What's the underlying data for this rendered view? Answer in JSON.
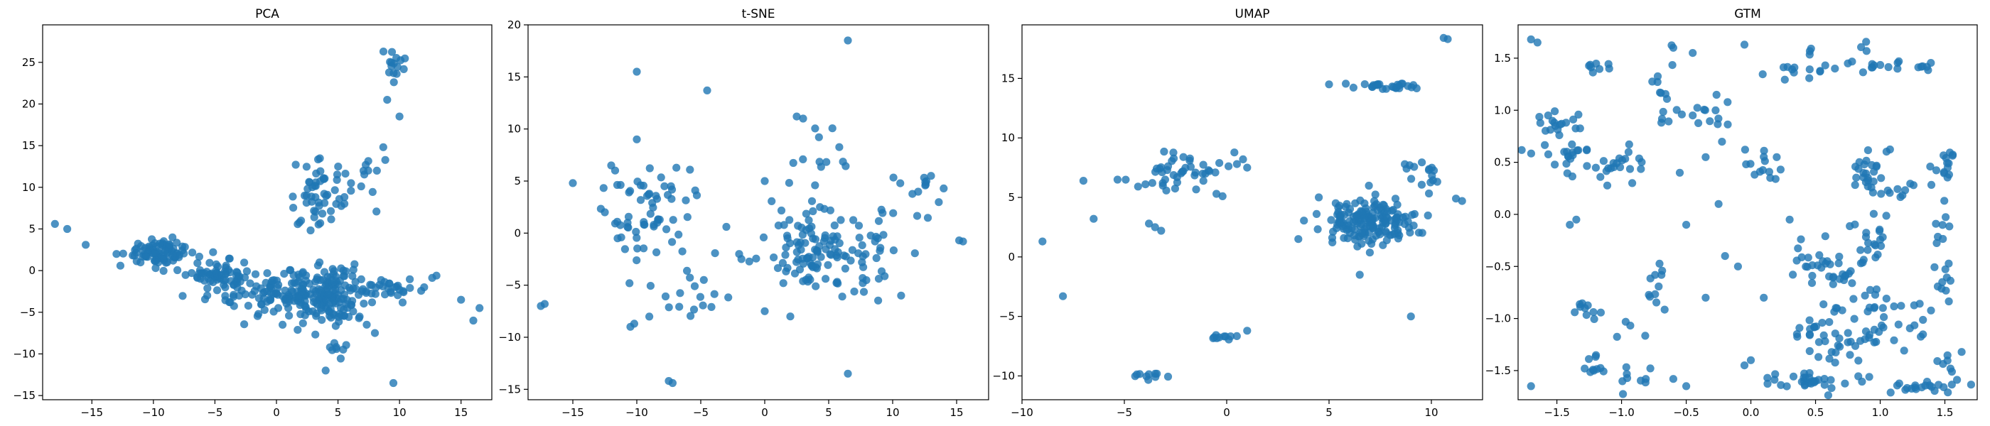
{
  "chart_data": [
    {
      "type": "scatter",
      "title": "PCA",
      "color": "#1f77b4",
      "xlim": [
        -19,
        17.5
      ],
      "ylim": [
        -15.5,
        29.5
      ],
      "xticks": [
        -15,
        -10,
        -5,
        0,
        5,
        10,
        15
      ],
      "yticks": [
        -15,
        -10,
        -5,
        0,
        5,
        10,
        15,
        20,
        25
      ],
      "clusters": [
        {
          "cx": -9.5,
          "cy": 2.2,
          "sx": 1.4,
          "sy": 0.8,
          "n": 90,
          "rot": -0.2
        },
        {
          "cx": -4.5,
          "cy": -0.8,
          "sx": 1.2,
          "sy": 1.1,
          "n": 80,
          "rot": 0
        },
        {
          "cx": 0.5,
          "cy": -3.0,
          "sx": 1.6,
          "sy": 1.2,
          "n": 90,
          "rot": 0
        },
        {
          "cx": 4.5,
          "cy": -3.0,
          "sx": 1.5,
          "sy": 1.8,
          "n": 140,
          "rot": 0
        },
        {
          "cx": 9.5,
          "cy": -2.0,
          "sx": 1.6,
          "sy": 0.7,
          "n": 30,
          "rot": 0
        },
        {
          "cx": 3.5,
          "cy": 9.0,
          "sx": 1.0,
          "sy": 2.0,
          "n": 50,
          "rot": 0
        },
        {
          "cx": 6.5,
          "cy": 11.5,
          "sx": 1.0,
          "sy": 2.0,
          "n": 15,
          "rot": 0
        },
        {
          "cx": 9.5,
          "cy": 25.0,
          "sx": 0.6,
          "sy": 1.1,
          "n": 15,
          "rot": 0
        },
        {
          "cx": 5.0,
          "cy": -10.0,
          "sx": 0.6,
          "sy": 1.0,
          "n": 8,
          "rot": 0
        }
      ],
      "points": [
        [
          -18,
          5.6
        ],
        [
          -17,
          5.0
        ],
        [
          -15.5,
          3.1
        ],
        [
          -13,
          2.0
        ],
        [
          10,
          18.5
        ],
        [
          9,
          20.5
        ],
        [
          9.5,
          -13.5
        ],
        [
          15,
          -3.5
        ],
        [
          16,
          -6
        ],
        [
          16.5,
          -4.5
        ],
        [
          8,
          -7.5
        ],
        [
          4,
          -12
        ],
        [
          13,
          -0.6
        ],
        [
          0.5,
          -6.5
        ],
        [
          2,
          6
        ],
        [
          12,
          -2
        ]
      ]
    },
    {
      "type": "scatter",
      "title": "t-SNE",
      "color": "#1f77b4",
      "xlim": [
        -18.5,
        17.5
      ],
      "ylim": [
        -16,
        20
      ],
      "xticks": [
        -15,
        -10,
        -5,
        0,
        5,
        10,
        15
      ],
      "yticks": [
        -15,
        -10,
        -5,
        0,
        5,
        10,
        15,
        20
      ],
      "clusters": [
        {
          "cx": -9.0,
          "cy": 2.5,
          "sx": 1.6,
          "sy": 2.2,
          "n": 60,
          "rot": 0
        },
        {
          "cx": 4.0,
          "cy": -1.5,
          "sx": 2.0,
          "sy": 2.0,
          "n": 110,
          "rot": 0
        },
        {
          "cx": 9.0,
          "cy": -2.0,
          "sx": 1.5,
          "sy": 2.5,
          "n": 25,
          "rot": 0
        },
        {
          "cx": -6.0,
          "cy": -5.5,
          "sx": 1.8,
          "sy": 1.8,
          "n": 20,
          "rot": 0
        },
        {
          "cx": 11.5,
          "cy": 4.5,
          "sx": 1.5,
          "sy": 1.0,
          "n": 12,
          "rot": 0
        },
        {
          "cx": 4.5,
          "cy": 7.5,
          "sx": 1.5,
          "sy": 1.5,
          "n": 12,
          "rot": 0
        }
      ],
      "points": [
        [
          6.5,
          18.5
        ],
        [
          -10,
          15.5
        ],
        [
          -4.5,
          13.7
        ],
        [
          -15,
          4.8
        ],
        [
          -17.5,
          -7
        ],
        [
          -17.2,
          -6.8
        ],
        [
          -7.5,
          -14.2
        ],
        [
          -7.2,
          -14.4
        ],
        [
          6.5,
          -13.5
        ],
        [
          15.5,
          -0.8
        ],
        [
          15.2,
          -0.7
        ],
        [
          -10.5,
          -9
        ],
        [
          -10.2,
          -8.7
        ],
        [
          3,
          11
        ],
        [
          2.5,
          11.2
        ],
        [
          -10,
          9
        ],
        [
          2,
          -8
        ],
        [
          0,
          -7.5
        ],
        [
          -2,
          -2
        ],
        [
          -3,
          0.6
        ],
        [
          -12,
          6.5
        ],
        [
          -12.5,
          2
        ],
        [
          -11.5,
          -0.5
        ],
        [
          0,
          5
        ],
        [
          13,
          5.5
        ]
      ]
    },
    {
      "type": "scatter",
      "title": "UMAP",
      "color": "#1f77b4",
      "xlim": [
        -10,
        12.5
      ],
      "ylim": [
        -12,
        19.5
      ],
      "xticks": [
        -10,
        -5,
        0,
        5,
        10
      ],
      "yticks": [
        -10,
        -5,
        0,
        5,
        10,
        15
      ],
      "clusters": [
        {
          "cx": 7.0,
          "cy": 3.0,
          "sx": 1.2,
          "sy": 1.0,
          "n": 170,
          "rot": 0
        },
        {
          "cx": -2.5,
          "cy": 7.0,
          "sx": 1.2,
          "sy": 0.7,
          "n": 45,
          "rot": 0.55
        },
        {
          "cx": 9.8,
          "cy": 7.5,
          "sx": 0.6,
          "sy": 0.8,
          "n": 15,
          "rot": 0.6
        },
        {
          "cx": 8.0,
          "cy": 14.3,
          "sx": 1.2,
          "sy": 0.15,
          "n": 25,
          "rot": 0
        },
        {
          "cx": -4.0,
          "cy": -10.0,
          "sx": 0.3,
          "sy": 0.25,
          "n": 10,
          "rot": 0.5
        },
        {
          "cx": 0.0,
          "cy": -6.7,
          "sx": 0.35,
          "sy": 0.25,
          "n": 10,
          "rot": 0.3
        }
      ],
      "points": [
        [
          10.8,
          18.3
        ],
        [
          10.6,
          18.4
        ],
        [
          -7,
          6.4
        ],
        [
          -6.5,
          3.2
        ],
        [
          -9,
          1.3
        ],
        [
          -8,
          -3.3
        ],
        [
          -3.5,
          2.5
        ],
        [
          -3.2,
          2.2
        ],
        [
          -3.8,
          2.8
        ],
        [
          3.5,
          1.5
        ],
        [
          5,
          14.5
        ],
        [
          9,
          -5
        ],
        [
          0.8,
          8.2
        ],
        [
          1,
          7.5
        ],
        [
          0.5,
          7.8
        ],
        [
          -0.5,
          5.3
        ],
        [
          -0.2,
          5.1
        ],
        [
          11.5,
          4.7
        ],
        [
          11.2,
          4.9
        ],
        [
          6.5,
          -1.5
        ],
        [
          1,
          -6.2
        ],
        [
          4.5,
          5
        ]
      ]
    },
    {
      "type": "scatter",
      "title": "GTM",
      "color": "#1f77b4",
      "xlim": [
        -1.8,
        1.75
      ],
      "ylim": [
        -1.78,
        1.82
      ],
      "xticks": [
        -1.5,
        -1.0,
        -0.5,
        0.0,
        0.5,
        1.0,
        1.5
      ],
      "tick_labels": {
        "x": [
          "−1.5",
          "−1.0",
          "−0.5",
          "0.0",
          "0.5",
          "1.0",
          "1.5"
        ],
        "y": [
          "−1.5",
          "−1.0",
          "−0.5",
          "0.0",
          "0.5",
          "1.0",
          "1.5"
        ]
      },
      "yticks": [
        -1.5,
        -1.0,
        -0.5,
        0.0,
        0.5,
        1.0,
        1.5
      ],
      "clusters": [
        {
          "cx": -1.45,
          "cy": 0.7,
          "sx": 0.12,
          "sy": 0.18,
          "n": 40,
          "rot": 0
        },
        {
          "cx": 0.6,
          "cy": -0.5,
          "sx": 0.15,
          "sy": 0.15,
          "n": 40,
          "rot": 0
        },
        {
          "cx": 0.7,
          "cy": -1.2,
          "sx": 0.18,
          "sy": 0.2,
          "n": 50,
          "rot": 0
        },
        {
          "cx": 0.9,
          "cy": 0.4,
          "sx": 0.06,
          "sy": 0.12,
          "n": 25,
          "rot": 0
        },
        {
          "cx": -1.0,
          "cy": 0.45,
          "sx": 0.08,
          "sy": 0.1,
          "n": 20,
          "rot": 0
        },
        {
          "cx": 0.5,
          "cy": -1.6,
          "sx": 0.2,
          "sy": 0.04,
          "n": 30,
          "rot": 0
        },
        {
          "cx": 1.3,
          "cy": -1.65,
          "sx": 0.15,
          "sy": 0.03,
          "n": 20,
          "rot": 0
        },
        {
          "cx": 0.9,
          "cy": -0.2,
          "sx": 0.1,
          "sy": 0.12,
          "n": 15,
          "rot": 0
        },
        {
          "cx": 1.5,
          "cy": 0.45,
          "sx": 0.05,
          "sy": 0.1,
          "n": 15,
          "rot": 0
        },
        {
          "cx": 1.3,
          "cy": 1.42,
          "sx": 0.1,
          "sy": 0.02,
          "n": 10,
          "rot": 0
        },
        {
          "cx": -0.9,
          "cy": -1.4,
          "sx": 0.08,
          "sy": 0.2,
          "n": 15,
          "rot": 0
        },
        {
          "cx": -1.3,
          "cy": -0.9,
          "sx": 0.06,
          "sy": 0.05,
          "n": 10,
          "rot": 0
        },
        {
          "cx": -1.2,
          "cy": -1.45,
          "sx": 0.06,
          "sy": 0.08,
          "n": 10,
          "rot": 0
        },
        {
          "cx": 1.0,
          "cy": -1.0,
          "sx": 0.08,
          "sy": 0.15,
          "n": 15,
          "rot": 0
        },
        {
          "cx": 0.35,
          "cy": 1.45,
          "sx": 0.1,
          "sy": 0.08,
          "n": 15,
          "rot": 0
        },
        {
          "cx": -0.3,
          "cy": 0.95,
          "sx": 0.08,
          "sy": 0.1,
          "n": 12,
          "rot": 0
        },
        {
          "cx": 1.5,
          "cy": -0.6,
          "sx": 0.05,
          "sy": 0.1,
          "n": 10,
          "rot": 0
        },
        {
          "cx": 1.45,
          "cy": -0.1,
          "sx": 0.05,
          "sy": 0.08,
          "n": 8,
          "rot": 0
        },
        {
          "cx": 1.55,
          "cy": -1.4,
          "sx": 0.05,
          "sy": 0.1,
          "n": 8,
          "rot": 0
        },
        {
          "cx": -0.65,
          "cy": 1.15,
          "sx": 0.05,
          "sy": 0.25,
          "n": 15,
          "rot": 0
        },
        {
          "cx": 0.05,
          "cy": 0.5,
          "sx": 0.1,
          "sy": 0.08,
          "n": 12,
          "rot": 0
        },
        {
          "cx": -0.75,
          "cy": -0.65,
          "sx": 0.06,
          "sy": 0.12,
          "n": 10,
          "rot": 0
        },
        {
          "cx": 1.15,
          "cy": 0.2,
          "sx": 0.08,
          "sy": 0.08,
          "n": 10,
          "rot": 0
        },
        {
          "cx": -1.15,
          "cy": 1.4,
          "sx": 0.08,
          "sy": 0.03,
          "n": 8,
          "rot": 0
        },
        {
          "cx": 0.9,
          "cy": 1.5,
          "sx": 0.05,
          "sy": 0.1,
          "n": 10,
          "rot": 0
        },
        {
          "cx": 1.3,
          "cy": -0.95,
          "sx": 0.06,
          "sy": 0.12,
          "n": 8,
          "rot": 0
        }
      ],
      "points": [
        [
          -1.7,
          1.68
        ],
        [
          -1.65,
          1.65
        ],
        [
          -1.7,
          -1.65
        ],
        [
          -0.5,
          -1.65
        ],
        [
          -0.6,
          -1.58
        ],
        [
          -0.1,
          -0.5
        ],
        [
          -0.2,
          -0.4
        ],
        [
          -0.45,
          0.95
        ],
        [
          -0.35,
          0.55
        ],
        [
          -0.25,
          0.1
        ],
        [
          -0.05,
          1.63
        ],
        [
          0.2,
          0.55
        ],
        [
          0.15,
          0.35
        ],
        [
          0.0,
          -1.4
        ],
        [
          -0.05,
          -1.45
        ],
        [
          0.3,
          -0.05
        ],
        [
          -0.55,
          0.4
        ],
        [
          -0.35,
          -0.8
        ],
        [
          -1.4,
          -0.1
        ],
        [
          -1.35,
          -0.05
        ],
        [
          -0.6,
          1.6
        ],
        [
          -0.45,
          1.55
        ],
        [
          -0.5,
          -0.1
        ],
        [
          0.65,
          1.4
        ],
        [
          0.75,
          1.45
        ],
        [
          0.1,
          -0.8
        ]
      ]
    }
  ]
}
